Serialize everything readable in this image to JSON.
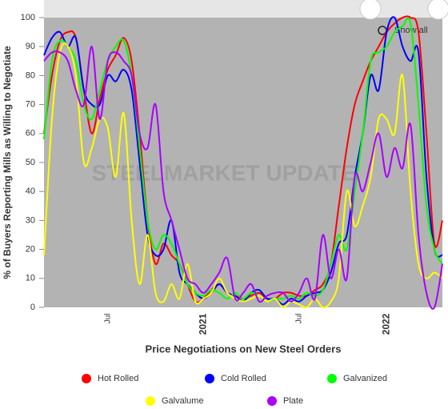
{
  "chart_data": {
    "type": "line",
    "title": "Price Negotiations on New Steel Orders",
    "y_label": "% of Buyers Reporting Mills as Willing to Negotiate",
    "watermark": "STEELMARKET UPDATE",
    "button": "Show all",
    "categories": [
      null,
      null,
      null,
      null,
      null,
      null,
      null,
      null,
      "Jul",
      null,
      null,
      null,
      null,
      null,
      null,
      null,
      null,
      null,
      null,
      null,
      "2021",
      null,
      null,
      null,
      null,
      null,
      null,
      null,
      null,
      null,
      null,
      null,
      "Jul",
      null,
      null,
      null,
      null,
      null,
      null,
      null,
      null,
      null,
      null,
      "2022",
      null,
      null,
      null,
      null,
      null,
      null,
      null
    ],
    "ylim": [
      0,
      100
    ],
    "yticks": [
      0,
      10,
      20,
      30,
      40,
      50,
      60,
      70,
      80,
      90,
      100
    ],
    "grid": false,
    "series": [
      {
        "name": "Hot Rolled",
        "color": "#ff0000",
        "values": [
          60,
          80,
          92,
          95,
          93,
          75,
          60,
          72,
          82,
          87,
          93,
          85,
          60,
          30,
          15,
          22,
          18,
          15,
          8,
          2,
          3,
          6,
          8,
          5,
          4,
          3,
          4,
          5,
          3,
          3,
          5,
          5,
          4,
          4,
          6,
          8,
          15,
          35,
          55,
          70,
          78,
          85,
          90,
          95,
          98,
          100,
          100,
          95,
          60,
          22,
          30
        ]
      },
      {
        "name": "Cold Rolled",
        "color": "#0000ff",
        "values": [
          87,
          93,
          95,
          90,
          93,
          75,
          70,
          70,
          80,
          78,
          82,
          75,
          50,
          25,
          18,
          20,
          30,
          12,
          8,
          5,
          3,
          5,
          8,
          5,
          4,
          2,
          5,
          6,
          3,
          3,
          1,
          3,
          2,
          4,
          5,
          6,
          12,
          22,
          25,
          45,
          60,
          80,
          75,
          95,
          100,
          90,
          85,
          88,
          45,
          20,
          18
        ]
      },
      {
        "name": "Galvanized",
        "color": "#00ff00",
        "values": [
          58,
          85,
          92,
          90,
          85,
          70,
          65,
          75,
          85,
          90,
          92,
          80,
          55,
          30,
          20,
          25,
          22,
          15,
          8,
          5,
          4,
          6,
          5,
          3,
          5,
          3,
          5,
          4,
          2,
          3,
          3,
          4,
          3,
          5,
          4,
          6,
          15,
          25,
          20,
          40,
          60,
          85,
          88,
          90,
          95,
          97,
          98,
          70,
          35,
          20,
          15
        ]
      },
      {
        "name": "Galvalume",
        "color": "#ffff00",
        "values": [
          18,
          65,
          88,
          90,
          80,
          50,
          55,
          65,
          62,
          45,
          67,
          30,
          8,
          25,
          5,
          2,
          8,
          3,
          15,
          2,
          3,
          5,
          10,
          5,
          3,
          2,
          3,
          4,
          2,
          3,
          0,
          2,
          1,
          0,
          3,
          0,
          2,
          10,
          40,
          28,
          35,
          45,
          65,
          65,
          60,
          80,
          40,
          15,
          10,
          12,
          10
        ]
      },
      {
        "name": "Plate",
        "color": "#aa00ff",
        "values": [
          85,
          88,
          88,
          85,
          75,
          70,
          90,
          65,
          85,
          88,
          85,
          80,
          60,
          55,
          70,
          40,
          30,
          20,
          10,
          8,
          5,
          8,
          12,
          17,
          3,
          5,
          8,
          2,
          4,
          5,
          5,
          2,
          5,
          10,
          3,
          25,
          10,
          20,
          10,
          45,
          40,
          50,
          60,
          45,
          55,
          48,
          63,
          25,
          5,
          0,
          15
        ]
      }
    ]
  }
}
